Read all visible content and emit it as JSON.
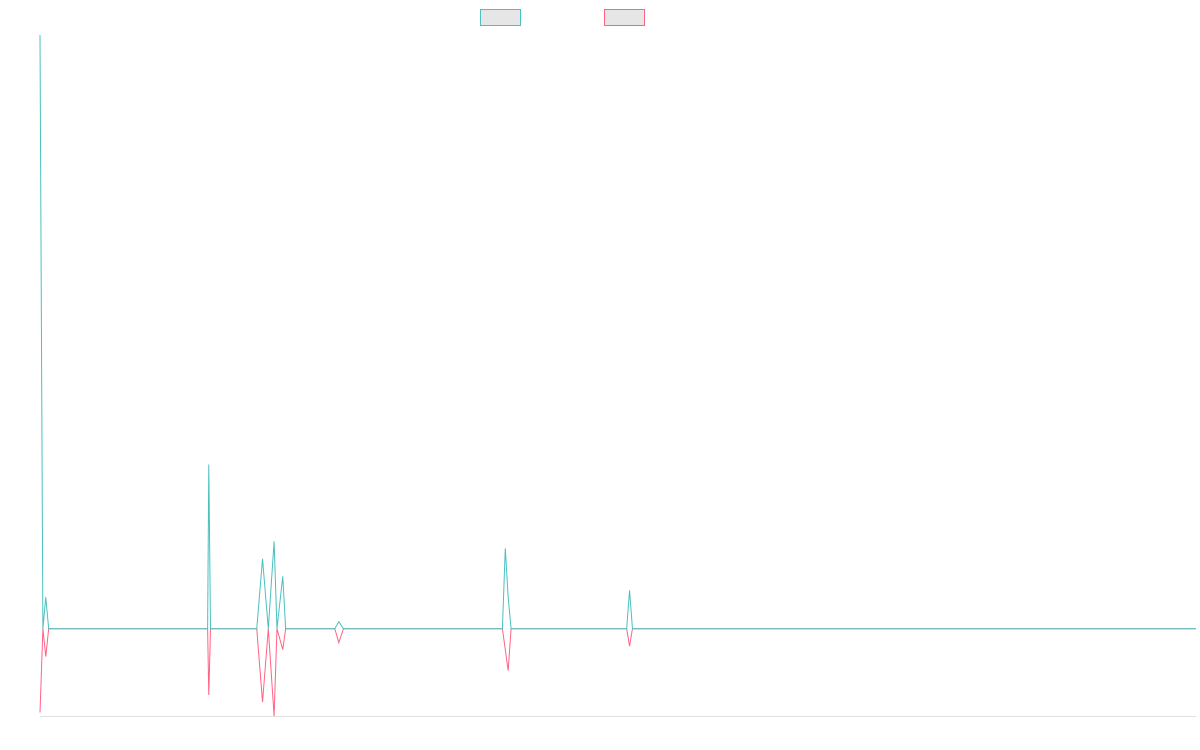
{
  "chart_data": {
    "type": "line",
    "title": "",
    "xlabel": "",
    "ylabel": "",
    "grid": false,
    "legend_position": "top-center",
    "colors": {
      "series_a": "#4bc0c0",
      "series_b": "#ff6384",
      "legend_fill": "#e6e6e6",
      "axis": "#e0e0e0"
    },
    "x_range": [
      0,
      200
    ],
    "ylim": [
      -25,
      170
    ],
    "series": [
      {
        "key": "series_a",
        "values": [
          [
            0,
            170
          ],
          [
            0.5,
            0
          ],
          [
            1,
            9
          ],
          [
            1.5,
            0
          ],
          [
            23.5,
            0
          ],
          [
            24,
            0
          ],
          [
            24.5,
            0
          ],
          [
            29,
            0
          ],
          [
            29.2,
            47
          ],
          [
            29.5,
            0
          ],
          [
            37.5,
            0
          ],
          [
            38.5,
            20
          ],
          [
            39.5,
            0
          ],
          [
            40.5,
            25
          ],
          [
            41,
            0
          ],
          [
            42,
            15
          ],
          [
            42.5,
            0
          ],
          [
            47,
            0
          ],
          [
            48,
            0
          ],
          [
            48.5,
            0
          ],
          [
            49,
            0
          ],
          [
            49.5,
            0
          ],
          [
            51,
            0
          ],
          [
            51.7,
            2
          ],
          [
            52.5,
            0
          ],
          [
            80,
            0
          ],
          [
            80.5,
            23
          ],
          [
            81,
            9
          ],
          [
            81.5,
            0
          ],
          [
            101.5,
            0
          ],
          [
            102,
            11
          ],
          [
            102.5,
            0
          ],
          [
            200,
            0
          ]
        ]
      },
      {
        "key": "series_b",
        "values": [
          [
            0,
            -24
          ],
          [
            0.5,
            0
          ],
          [
            1,
            -8
          ],
          [
            1.5,
            0
          ],
          [
            23.5,
            0
          ],
          [
            24,
            0
          ],
          [
            24.5,
            0
          ],
          [
            29,
            0
          ],
          [
            29.2,
            -19
          ],
          [
            29.5,
            0
          ],
          [
            37.5,
            0
          ],
          [
            38.5,
            -21
          ],
          [
            39.5,
            0
          ],
          [
            40.5,
            -25
          ],
          [
            41,
            0
          ],
          [
            42,
            -6
          ],
          [
            42.5,
            0
          ],
          [
            47,
            0
          ],
          [
            48,
            0
          ],
          [
            48.5,
            0
          ],
          [
            49,
            0
          ],
          [
            49.5,
            0
          ],
          [
            51,
            0
          ],
          [
            51.7,
            -4
          ],
          [
            52.5,
            0
          ],
          [
            80,
            0
          ],
          [
            81,
            -12
          ],
          [
            81.5,
            0
          ],
          [
            101.5,
            0
          ],
          [
            102,
            -5
          ],
          [
            102.5,
            0
          ],
          [
            200,
            0
          ]
        ]
      }
    ]
  }
}
